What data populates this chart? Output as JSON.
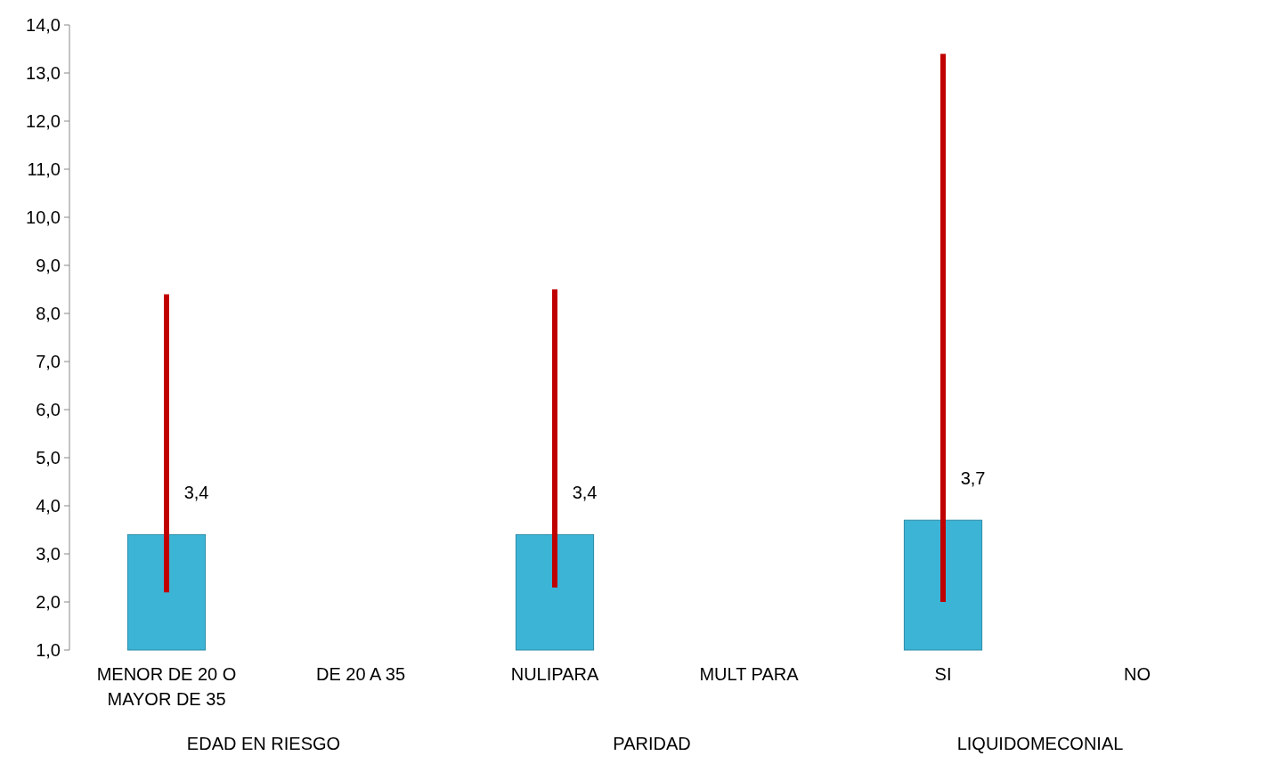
{
  "chart_data": {
    "type": "bar",
    "categories": [
      "MENOR DE 20 O MAYOR DE 35",
      "DE 20 A 35",
      "NULIPARA",
      "MULT PARA",
      "SI",
      "NO"
    ],
    "values": [
      3.4,
      null,
      3.4,
      null,
      3.7,
      null
    ],
    "color": "#3bb4d6",
    "errors": [
      [
        2.2,
        8.4
      ],
      null,
      [
        2.3,
        8.5
      ],
      null,
      [
        2.0,
        13.4
      ],
      null
    ],
    "value_labels": [
      "3,4",
      null,
      "3,4",
      null,
      "3,7",
      null
    ],
    "annotations": [
      "EDAD EN RIESGO",
      "PARIDAD",
      "LIQUIDOMECONIAL"
    ],
    "ylim": [
      1,
      14
    ],
    "yticks": [
      {
        "value": 1,
        "label": "1,0"
      },
      {
        "value": 2,
        "label": "2,0"
      },
      {
        "value": 3,
        "label": "3,0"
      },
      {
        "value": 4,
        "label": "4,0"
      },
      {
        "value": 5,
        "label": "5,0"
      },
      {
        "value": 6,
        "label": "6,0"
      },
      {
        "value": 7,
        "label": "7,0"
      },
      {
        "value": 8,
        "label": "8,0"
      },
      {
        "value": 9,
        "label": "9,0"
      },
      {
        "value": 10,
        "label": "10,0"
      },
      {
        "value": 11,
        "label": "11,0"
      },
      {
        "value": 12,
        "label": "12,0"
      },
      {
        "value": 13,
        "label": "13,0"
      },
      {
        "value": 14,
        "label": "14,0"
      }
    ],
    "grid": false
  }
}
